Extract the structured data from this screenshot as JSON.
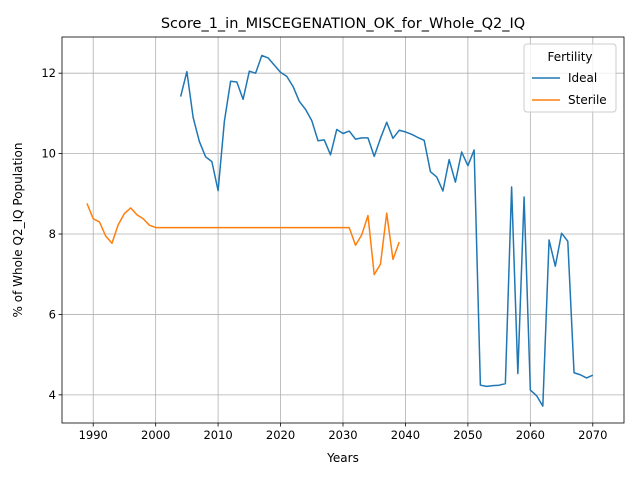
{
  "chart_data": {
    "type": "line",
    "title": "Score_1_in_MISCEGENATION_OK_for_Whole_Q2_IQ",
    "xlabel": "Years",
    "ylabel": "% of Whole Q2_IQ Population",
    "xlim": [
      1985,
      2075
    ],
    "ylim": [
      3.3,
      12.9
    ],
    "xticks": [
      1990,
      2000,
      2010,
      2020,
      2030,
      2040,
      2050,
      2060,
      2070
    ],
    "yticks": [
      4,
      6,
      8,
      10,
      12
    ],
    "grid": true,
    "legend": {
      "title": "Fertility",
      "position": "top-right"
    },
    "series": [
      {
        "name": "Ideal",
        "color": "#1f77b4",
        "x": [
          2004,
          2005,
          2006,
          2007,
          2008,
          2009,
          2010,
          2011,
          2012,
          2013,
          2014,
          2015,
          2016,
          2017,
          2018,
          2019,
          2020,
          2021,
          2022,
          2023,
          2024,
          2025,
          2026,
          2027,
          2028,
          2029,
          2030,
          2031,
          2032,
          2033,
          2034,
          2035,
          2036,
          2037,
          2038,
          2039,
          2040,
          2041,
          2042,
          2043,
          2044,
          2045,
          2046,
          2047,
          2048,
          2049,
          2050,
          2051,
          2052,
          2053,
          2054,
          2055,
          2056,
          2057,
          2058,
          2059,
          2060,
          2061,
          2062,
          2063,
          2064,
          2065,
          2066,
          2067,
          2068,
          2069,
          2070
        ],
        "values": [
          11.42,
          12.04,
          10.9,
          10.3,
          9.92,
          9.8,
          9.08,
          10.8,
          11.8,
          11.78,
          11.35,
          12.05,
          12.0,
          12.44,
          12.38,
          12.2,
          12.02,
          11.92,
          11.67,
          11.3,
          11.1,
          10.82,
          10.32,
          10.34,
          9.97,
          10.6,
          10.5,
          10.56,
          10.36,
          10.39,
          10.39,
          9.93,
          10.38,
          10.78,
          10.38,
          10.58,
          10.54,
          10.48,
          10.4,
          10.33,
          9.55,
          9.42,
          9.07,
          9.85,
          9.29,
          10.04,
          9.7,
          10.09,
          4.24,
          4.21,
          4.23,
          4.24,
          4.28,
          9.17,
          4.53,
          8.92,
          4.12,
          3.98,
          3.72,
          7.85,
          7.2,
          8.02,
          7.82,
          4.55,
          4.5,
          4.42,
          4.49
        ]
      },
      {
        "name": "Sterile",
        "color": "#ff7f0e",
        "x": [
          1989,
          1990,
          1991,
          1992,
          1993,
          1994,
          1995,
          1996,
          1997,
          1998,
          1999,
          2000,
          2001,
          2002,
          2003,
          2004,
          2005,
          2006,
          2007,
          2008,
          2009,
          2010,
          2011,
          2012,
          2013,
          2014,
          2015,
          2016,
          2017,
          2018,
          2019,
          2020,
          2021,
          2022,
          2023,
          2024,
          2025,
          2026,
          2027,
          2028,
          2029,
          2030,
          2031,
          2032,
          2033,
          2034,
          2035,
          2036,
          2037,
          2038,
          2039
        ],
        "values": [
          8.76,
          8.38,
          8.3,
          7.95,
          7.77,
          8.23,
          8.51,
          8.65,
          8.48,
          8.38,
          8.22,
          8.16,
          8.16,
          8.16,
          8.16,
          8.16,
          8.16,
          8.16,
          8.16,
          8.16,
          8.16,
          8.16,
          8.16,
          8.16,
          8.16,
          8.16,
          8.16,
          8.16,
          8.16,
          8.16,
          8.16,
          8.16,
          8.16,
          8.16,
          8.16,
          8.16,
          8.16,
          8.16,
          8.16,
          8.16,
          8.16,
          8.16,
          8.16,
          7.72,
          7.98,
          8.46,
          6.99,
          7.25,
          8.52,
          7.37,
          7.8
        ]
      }
    ]
  }
}
